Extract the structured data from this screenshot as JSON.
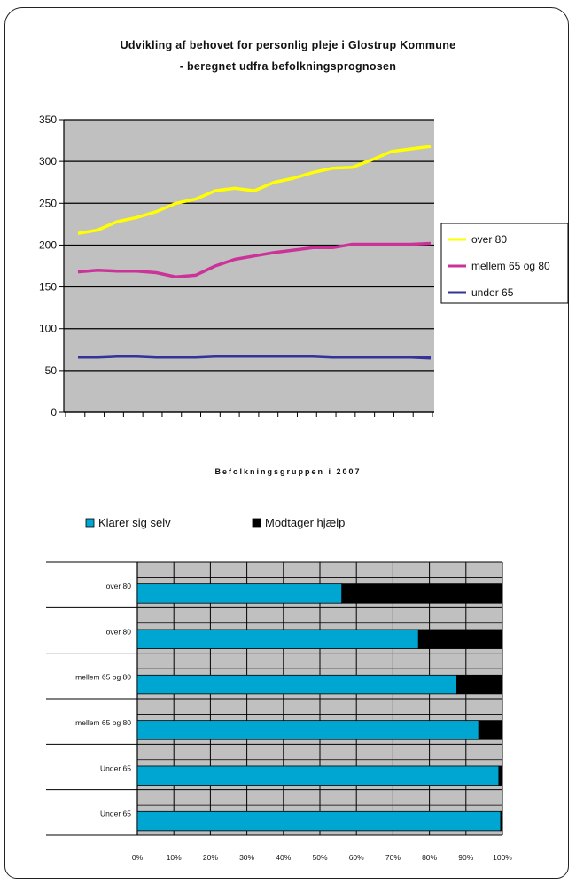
{
  "chart_data": [
    {
      "type": "line",
      "title": "Udvikling af behovet for personlig pleje i Glostrup Kommune",
      "subtitle": "- beregnet udfra befolkningsprognosen",
      "ylim": [
        0,
        350
      ],
      "yticks": [
        "0",
        "50",
        "100",
        "150",
        "200",
        "250",
        "300",
        "350"
      ],
      "grid": true,
      "legend_position": "right",
      "series": [
        {
          "name": "over 80",
          "color": "#ffff00",
          "values": [
            214,
            218,
            228,
            233,
            240,
            250,
            255,
            265,
            268,
            265,
            275,
            280,
            287,
            292,
            293,
            302,
            312,
            315,
            318
          ]
        },
        {
          "name": "mellem 65 og 80",
          "color": "#cc3399",
          "values": [
            168,
            170,
            169,
            169,
            167,
            162,
            164,
            175,
            183,
            187,
            191,
            194,
            197,
            197,
            201,
            201,
            201,
            201,
            202
          ]
        },
        {
          "name": "under 65",
          "color": "#333399",
          "values": [
            66,
            66,
            67,
            67,
            66,
            66,
            66,
            67,
            67,
            67,
            67,
            67,
            67,
            66,
            66,
            66,
            66,
            66,
            65
          ]
        }
      ]
    },
    {
      "type": "bar",
      "orientation": "horizontal",
      "stacked": true,
      "title": "Befolkningsgruppen i 2007",
      "categories": [
        "over 80",
        "over 80",
        "mellem 65 og 80",
        "mellem 65 og 80",
        "Under 65",
        "Under 65"
      ],
      "xticks": [
        "0%",
        "10%",
        "20%",
        "30%",
        "40%",
        "50%",
        "60%",
        "70%",
        "80%",
        "90%",
        "100%"
      ],
      "xlim": [
        0,
        100
      ],
      "legend_position": "top",
      "series": [
        {
          "name": "Klarer sig selv",
          "color": "#00a6d2",
          "values": [
            56,
            77,
            87.5,
            93.5,
            99,
            99.5
          ]
        },
        {
          "name": "Modtager hjælp",
          "color": "#000000",
          "values": [
            44,
            23,
            12.5,
            6.5,
            1,
            0.5
          ]
        }
      ]
    }
  ]
}
